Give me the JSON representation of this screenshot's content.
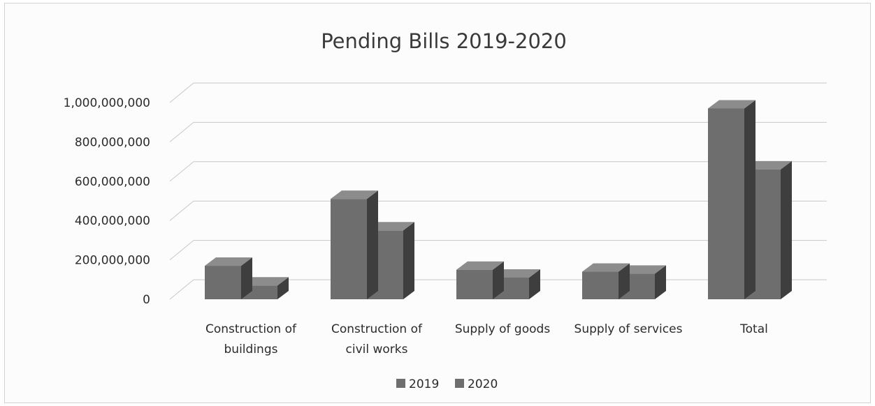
{
  "chart_data": {
    "type": "bar",
    "title": "Pending Bills 2019-2020",
    "categories": [
      "Construction of buildings",
      "Construction of civil works",
      "Supply of goods",
      "Supply of services",
      "Total"
    ],
    "category_lines": [
      [
        "Construction of",
        "buildings"
      ],
      [
        "Construction of",
        "civil works"
      ],
      [
        "Supply of goods"
      ],
      [
        "Supply of services"
      ],
      [
        "Total"
      ]
    ],
    "series": [
      {
        "name": "2019",
        "values": [
          170000000,
          510000000,
          150000000,
          140000000,
          970000000
        ]
      },
      {
        "name": "2020",
        "values": [
          70000000,
          350000000,
          110000000,
          130000000,
          660000000
        ]
      }
    ],
    "ylim": [
      0,
      1000000000
    ],
    "yticks": [
      "0",
      "200,000,000",
      "400,000,000",
      "600,000,000",
      "800,000,000",
      "1,000,000,000"
    ],
    "xlabel": "",
    "ylabel": "",
    "grid": true,
    "legend_position": "bottom",
    "style": "3d-column",
    "colors": {
      "series_front": "#6e6e6e",
      "series_top": "#8c8c8c",
      "series_side": "#3e3e3e",
      "gridline": "#c8c8c8"
    }
  }
}
